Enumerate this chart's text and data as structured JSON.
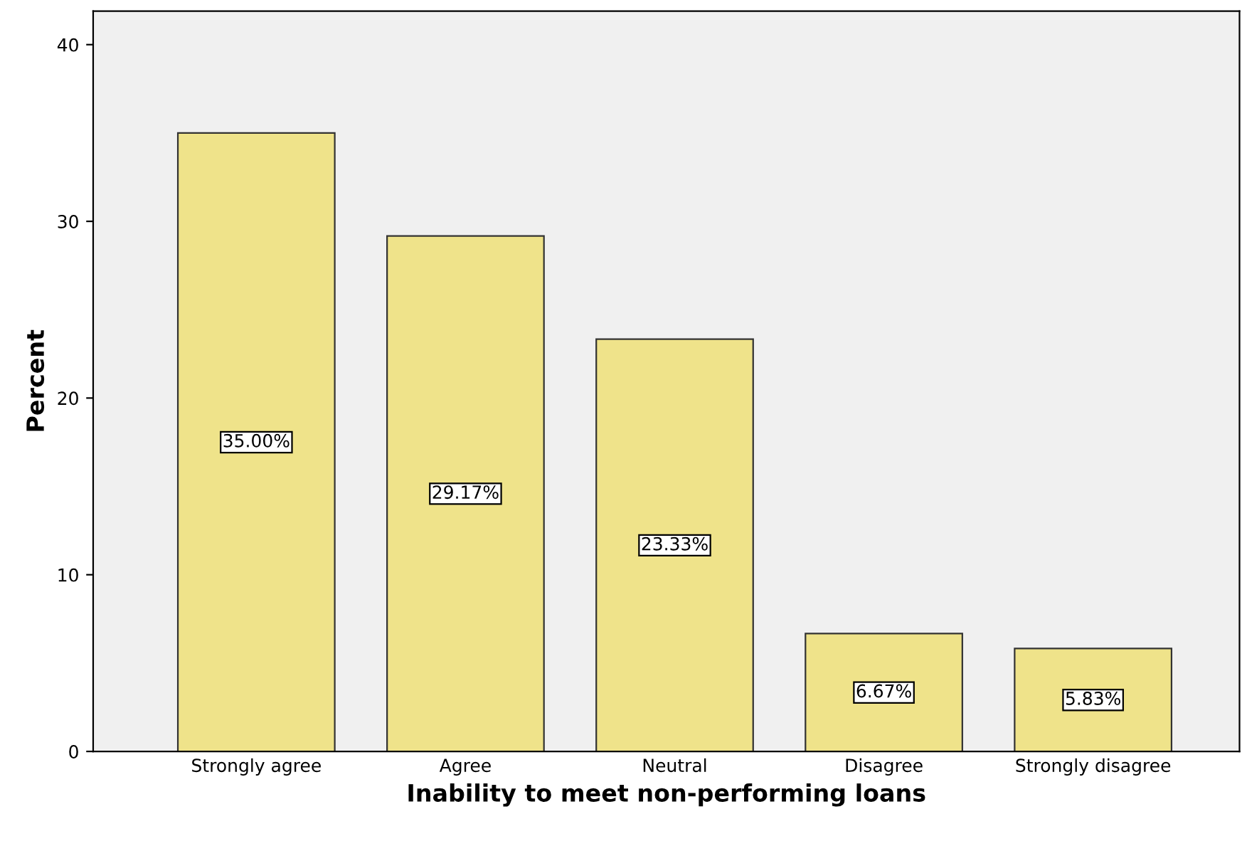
{
  "chart_data": {
    "type": "bar",
    "xlabel": "Inability to meet non-performing loans",
    "ylabel": "Percent",
    "categories": [
      "Strongly agree",
      "Agree",
      "Neutral",
      "Disagree",
      "Strongly disagree"
    ],
    "values": [
      35.0,
      29.17,
      23.33,
      6.67,
      5.83
    ],
    "value_labels": [
      "35.00%",
      "29.17%",
      "23.33%",
      "6.67%",
      "5.83%"
    ],
    "color": "#efe38a",
    "ylim": [
      0,
      41.9
    ],
    "yticks": [
      0,
      10,
      20,
      30,
      40
    ],
    "grid": false
  }
}
